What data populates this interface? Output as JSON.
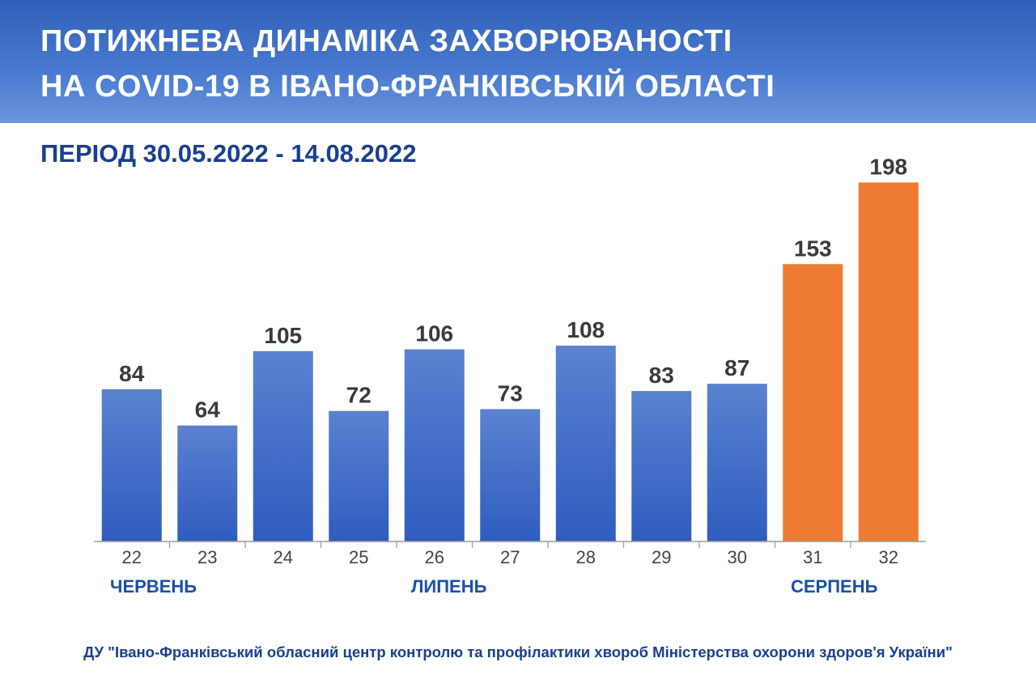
{
  "header": {
    "title_line1": "ПОТИЖНЕВА ДИНАМІКА ЗАХВОРЮВАНОСТІ",
    "title_line2": "НА COVID-19 В ІВАНО-ФРАНКІВСЬКІЙ ОБЛАСТІ",
    "period": "ПЕРІОД  30.05.2022 - 14.08.2022"
  },
  "months": [
    "ЧЕРВЕНЬ",
    "ЛИПЕНЬ",
    "СЕРПЕНЬ"
  ],
  "footer": "ДУ \"Івано-Франківський обласний центр контролю та профілактики хвороб Міністерства охорони здоров'я України\"",
  "colors": {
    "bar_blue_top": "#5a82d0",
    "bar_blue_bottom": "#2f5cc0",
    "bar_orange": "#ee7c32",
    "header": "#2f5fb8",
    "text_dark_blue": "#1a3f8f"
  },
  "chart_data": {
    "type": "bar",
    "categories": [
      "22",
      "23",
      "24",
      "25",
      "26",
      "27",
      "28",
      "29",
      "30",
      "31",
      "32"
    ],
    "values": [
      84,
      64,
      105,
      72,
      106,
      73,
      108,
      83,
      87,
      153,
      198
    ],
    "highlighted": [
      false,
      false,
      false,
      false,
      false,
      false,
      false,
      false,
      false,
      true,
      true
    ],
    "ylim": [
      0,
      200
    ],
    "grid": false,
    "data_labels": true
  }
}
